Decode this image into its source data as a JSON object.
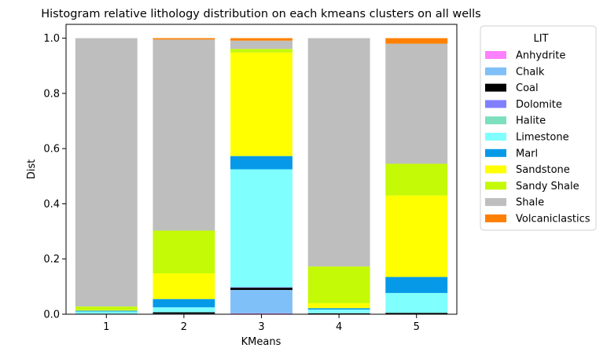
{
  "chart_data": {
    "type": "bar",
    "stacked": true,
    "title": "Histogram relative lithology distribution on each kmeans clusters on all wells",
    "xlabel": "KMeans",
    "ylabel": "Dist",
    "ylim": [
      0,
      1.05
    ],
    "yticks": [
      "0.0",
      "0.2",
      "0.4",
      "0.6",
      "0.8",
      "1.0"
    ],
    "grid": false,
    "categories": [
      "1",
      "2",
      "3",
      "4",
      "5"
    ],
    "legend": {
      "title": "LIT",
      "placement": "outside-right"
    },
    "series": [
      {
        "name": "Anhydrite",
        "color": "#ff80ff",
        "values": [
          0.0,
          0.0,
          0.003,
          0.0,
          0.0
        ]
      },
      {
        "name": "Chalk",
        "color": "#80c0f8",
        "values": [
          0.0,
          0.002,
          0.085,
          0.0,
          0.0
        ]
      },
      {
        "name": "Coal",
        "color": "#000000",
        "values": [
          0.002,
          0.005,
          0.008,
          0.003,
          0.005
        ]
      },
      {
        "name": "Dolomite",
        "color": "#8080ff",
        "values": [
          0.0,
          0.0,
          0.002,
          0.0,
          0.0
        ]
      },
      {
        "name": "Halite",
        "color": "#7ddfbe",
        "values": [
          0.0,
          0.0,
          0.0,
          0.002,
          0.0
        ]
      },
      {
        "name": "Limestone",
        "color": "#80ffff",
        "values": [
          0.008,
          0.018,
          0.427,
          0.012,
          0.072
        ]
      },
      {
        "name": "Marl",
        "color": "#0599e8",
        "values": [
          0.003,
          0.03,
          0.048,
          0.005,
          0.058
        ]
      },
      {
        "name": "Sandstone",
        "color": "#ffff00",
        "values": [
          0.002,
          0.093,
          0.375,
          0.018,
          0.295
        ]
      },
      {
        "name": "Sandy Shale",
        "color": "#c4fa06",
        "values": [
          0.013,
          0.155,
          0.013,
          0.133,
          0.115
        ]
      },
      {
        "name": "Shale",
        "color": "#bebebe",
        "values": [
          0.972,
          0.692,
          0.03,
          0.827,
          0.435
        ]
      },
      {
        "name": "Volcaniclastics",
        "color": "#ff8000",
        "values": [
          0.0,
          0.005,
          0.009,
          0.0,
          0.02
        ]
      }
    ]
  }
}
